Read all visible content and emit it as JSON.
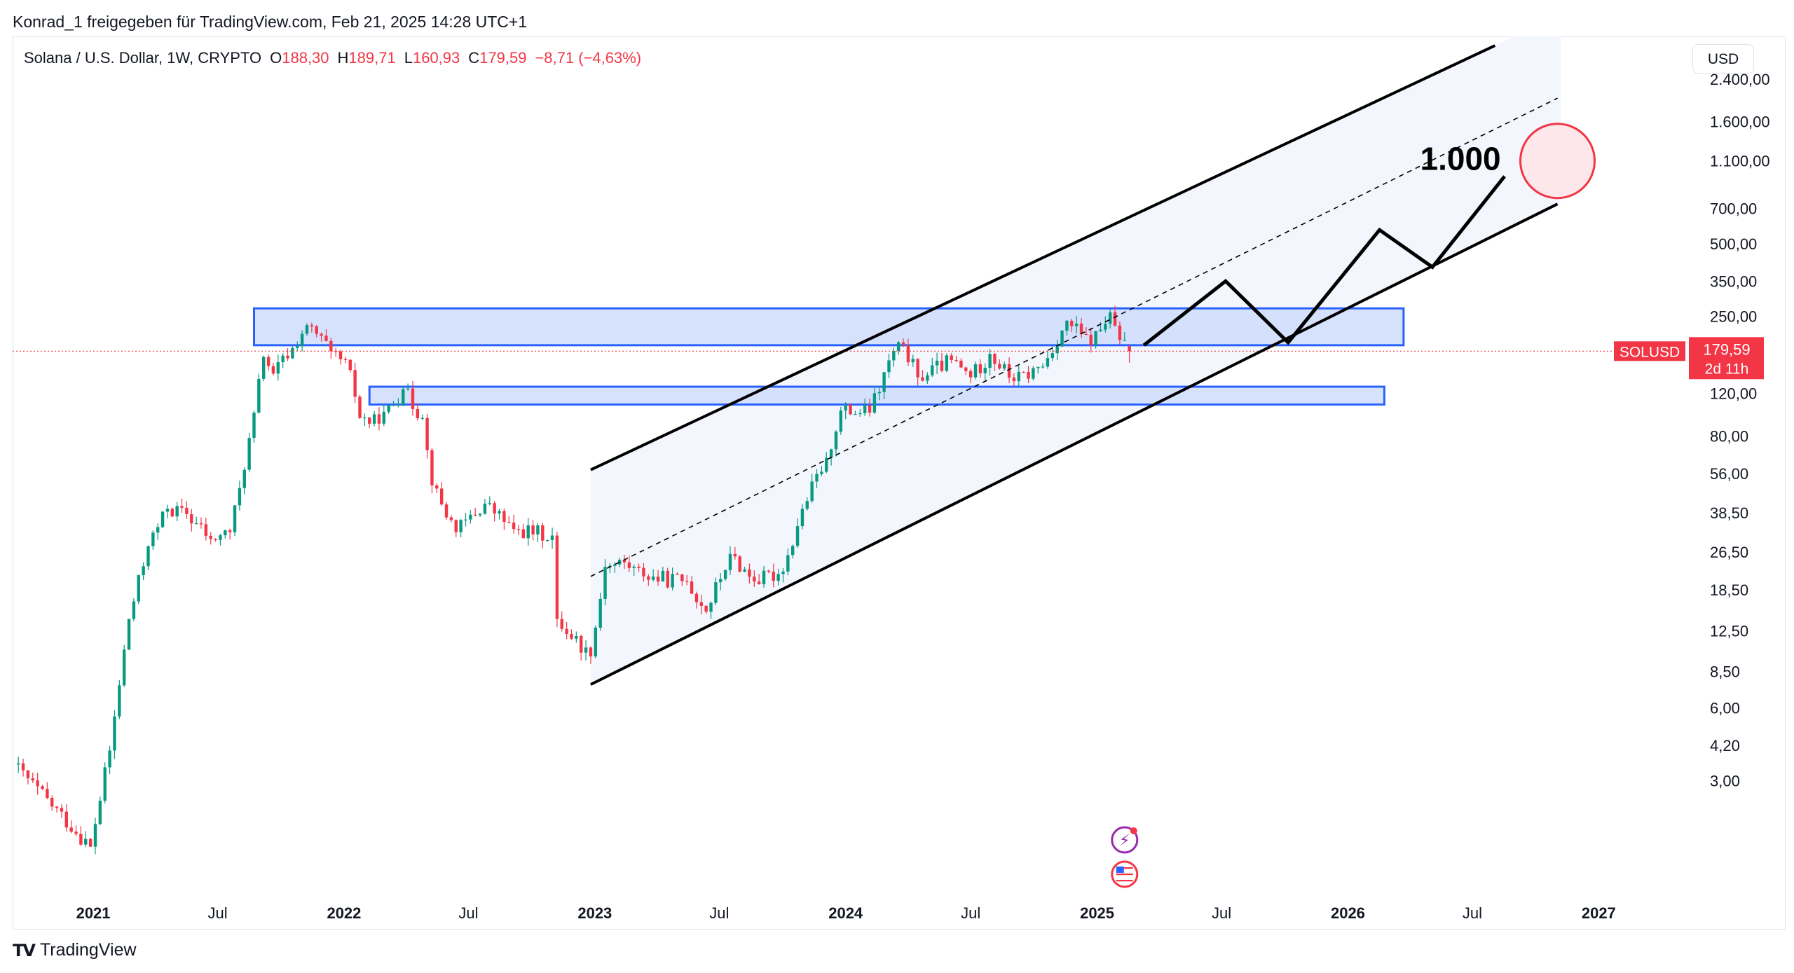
{
  "caption": "Konrad_1 freigegeben für TradingView.com, Feb 21, 2025 14:28 UTC+1",
  "legend": {
    "symbol": "Solana / U.S. Dollar, 1W, CRYPTO",
    "open_label": "O",
    "open": "188,30",
    "high_label": "H",
    "high": "189,71",
    "low_label": "L",
    "low": "160,93",
    "close_label": "C",
    "close": "179,59",
    "change": "−8,71 (−4,63%)"
  },
  "currency_button": "USD",
  "price_tag": {
    "symbol": "SOLUSD",
    "price": "179,59",
    "countdown": "2d 11h"
  },
  "annotation_text": "1.000",
  "footer_logo": "TradingView",
  "colors": {
    "up": "#089981",
    "down": "#f23645",
    "box_fill": "#cfdcfb",
    "box_stroke": "#2962ff",
    "channel_fill": "#f3f6fd",
    "target_circle": "#f23645"
  },
  "icons": [
    "lightning-event-icon",
    "us-flag-event-icon"
  ],
  "chart_data": {
    "type": "candlestick",
    "scale": "log",
    "ylim": [
      2.5,
      3200
    ],
    "x_tick_labels": [
      "2021",
      "Jul",
      "2022",
      "Jul",
      "2023",
      "Jul",
      "2024",
      "Jul",
      "2025",
      "Jul",
      "2026",
      "Jul",
      "2027"
    ],
    "y_tick_labels": [
      "2.400,00",
      "1.600,00",
      "1.100,00",
      "700,00",
      "500,00",
      "350,00",
      "250,00",
      "120,00",
      "80,00",
      "56,00",
      "38,50",
      "26,50",
      "18,50",
      "12,50",
      "8,50",
      "6,00",
      "4,20",
      "3,00"
    ],
    "y_tick_values": [
      2400,
      1600,
      1100,
      700,
      500,
      350,
      250,
      120,
      80,
      56,
      38.5,
      26.5,
      18.5,
      12.5,
      8.5,
      6,
      4.2,
      3
    ],
    "last_price": 179.59,
    "price_path": [
      {
        "date": "2020-09-07",
        "close": 3.5
      },
      {
        "date": "2020-12-28",
        "close": 1.6
      },
      {
        "date": "2021-01-25",
        "close": 4.0
      },
      {
        "date": "2021-02-22",
        "close": 14.0
      },
      {
        "date": "2021-03-22",
        "close": 28
      },
      {
        "date": "2021-04-19",
        "close": 40
      },
      {
        "date": "2021-05-17",
        "close": 38
      },
      {
        "date": "2021-06-21",
        "close": 30
      },
      {
        "date": "2021-07-19",
        "close": 32
      },
      {
        "date": "2021-08-09",
        "close": 58
      },
      {
        "date": "2021-08-23",
        "close": 100
      },
      {
        "date": "2021-09-06",
        "close": 170
      },
      {
        "date": "2021-09-20",
        "close": 145
      },
      {
        "date": "2021-10-18",
        "close": 185
      },
      {
        "date": "2021-11-08",
        "close": 230
      },
      {
        "date": "2021-12-13",
        "close": 180
      },
      {
        "date": "2022-01-10",
        "close": 150
      },
      {
        "date": "2022-01-24",
        "close": 95
      },
      {
        "date": "2022-02-21",
        "close": 90
      },
      {
        "date": "2022-03-28",
        "close": 125
      },
      {
        "date": "2022-04-25",
        "close": 95
      },
      {
        "date": "2022-05-09",
        "close": 50
      },
      {
        "date": "2022-06-13",
        "close": 32
      },
      {
        "date": "2022-07-25",
        "close": 42
      },
      {
        "date": "2022-09-05",
        "close": 33
      },
      {
        "date": "2022-10-31",
        "close": 31
      },
      {
        "date": "2022-11-07",
        "close": 14
      },
      {
        "date": "2022-12-26",
        "close": 9.8
      },
      {
        "date": "2023-01-16",
        "close": 23
      },
      {
        "date": "2023-02-13",
        "close": 24
      },
      {
        "date": "2023-03-13",
        "close": 21
      },
      {
        "date": "2023-05-15",
        "close": 20
      },
      {
        "date": "2023-06-12",
        "close": 15
      },
      {
        "date": "2023-07-17",
        "close": 26
      },
      {
        "date": "2023-08-21",
        "close": 20
      },
      {
        "date": "2023-10-02",
        "close": 22
      },
      {
        "date": "2023-10-30",
        "close": 40
      },
      {
        "date": "2023-12-04",
        "close": 65
      },
      {
        "date": "2023-12-25",
        "close": 102
      },
      {
        "date": "2024-02-05",
        "close": 100
      },
      {
        "date": "2024-03-11",
        "close": 180
      },
      {
        "date": "2024-03-25",
        "close": 190
      },
      {
        "date": "2024-04-15",
        "close": 140
      },
      {
        "date": "2024-06-03",
        "close": 165
      },
      {
        "date": "2024-07-01",
        "close": 140
      },
      {
        "date": "2024-07-29",
        "close": 175
      },
      {
        "date": "2024-09-02",
        "close": 135
      },
      {
        "date": "2024-10-14",
        "close": 155
      },
      {
        "date": "2024-11-18",
        "close": 240
      },
      {
        "date": "2024-12-23",
        "close": 190
      },
      {
        "date": "2025-01-20",
        "close": 260
      },
      {
        "date": "2025-02-03",
        "close": 200
      },
      {
        "date": "2025-02-17",
        "close": 179.59
      }
    ],
    "annotations": {
      "resistance_box": {
        "from": "2021-08-23",
        "to": "2026-03-23",
        "low": 190,
        "high": 270
      },
      "support_box": {
        "from": "2022-02-07",
        "to": "2026-02-23",
        "low": 108,
        "high": 128
      },
      "channel_upper": [
        {
          "date": "2022-12-26",
          "price": 58
        },
        {
          "date": "2026-08-03",
          "price": 3300
        }
      ],
      "channel_mid": [
        {
          "date": "2022-12-26",
          "price": 21
        },
        {
          "date": "2026-11-02",
          "price": 2000
        }
      ],
      "channel_lower": [
        {
          "date": "2022-12-26",
          "price": 7.5
        },
        {
          "date": "2026-11-02",
          "price": 730
        }
      ],
      "projection_path": [
        {
          "date": "2025-03-10",
          "price": 190
        },
        {
          "date": "2025-07-07",
          "price": 350
        },
        {
          "date": "2025-10-06",
          "price": 195
        },
        {
          "date": "2026-02-16",
          "price": 570
        },
        {
          "date": "2026-05-04",
          "price": 400
        },
        {
          "date": "2026-08-17",
          "price": 950
        }
      ],
      "target": {
        "date": "2026-11-02",
        "price": 1100
      }
    }
  }
}
